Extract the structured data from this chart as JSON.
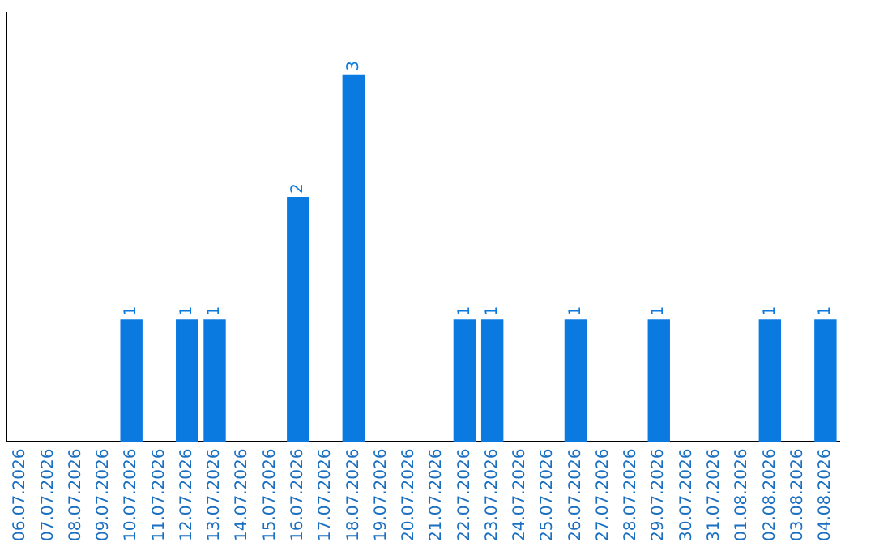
{
  "chart_data": {
    "type": "bar",
    "categories": [
      "06.07.2026",
      "07.07.2026",
      "08.07.2026",
      "09.07.2026",
      "10.07.2026",
      "11.07.2026",
      "12.07.2026",
      "13.07.2026",
      "14.07.2026",
      "15.07.2026",
      "16.07.2026",
      "17.07.2026",
      "18.07.2026",
      "19.07.2026",
      "20.07.2026",
      "21.07.2026",
      "22.07.2026",
      "23.07.2026",
      "24.07.2026",
      "25.07.2026",
      "26.07.2026",
      "27.07.2026",
      "28.07.2026",
      "29.07.2026",
      "30.07.2026",
      "31.07.2026",
      "01.08.2026",
      "02.08.2026",
      "03.08.2026",
      "04.08.2026"
    ],
    "values": [
      0,
      0,
      0,
      0,
      1,
      0,
      1,
      1,
      0,
      0,
      2,
      0,
      3,
      0,
      0,
      0,
      1,
      1,
      0,
      0,
      1,
      0,
      0,
      1,
      0,
      0,
      0,
      1,
      0,
      1
    ],
    "value_labels": [
      null,
      null,
      null,
      null,
      "1",
      null,
      "1",
      "1",
      null,
      null,
      "2",
      null,
      "3",
      null,
      null,
      null,
      "1",
      "1",
      null,
      null,
      "1",
      null,
      null,
      "1",
      null,
      null,
      null,
      "1",
      null,
      "1"
    ],
    "color": "#0a7ae0",
    "tick_labels": "x",
    "grid": false,
    "legend": false
  }
}
